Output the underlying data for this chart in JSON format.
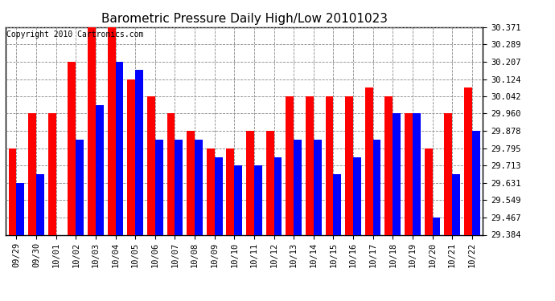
{
  "title": "Barometric Pressure Daily High/Low 20101023",
  "copyright": "Copyright 2010 Cartronics.com",
  "categories": [
    "09/29",
    "09/30",
    "10/01",
    "10/02",
    "10/03",
    "10/04",
    "10/05",
    "10/06",
    "10/07",
    "10/08",
    "10/09",
    "10/10",
    "10/11",
    "10/12",
    "10/13",
    "10/14",
    "10/15",
    "10/16",
    "10/17",
    "10/18",
    "10/19",
    "10/20",
    "10/21",
    "10/22"
  ],
  "highs": [
    29.795,
    29.96,
    29.96,
    30.207,
    30.371,
    30.371,
    30.124,
    30.042,
    29.96,
    29.878,
    29.795,
    29.795,
    29.878,
    29.878,
    30.042,
    30.042,
    30.042,
    30.042,
    30.083,
    30.042,
    29.96,
    29.795,
    29.96,
    30.083
  ],
  "lows": [
    29.631,
    29.672,
    29.384,
    29.836,
    30.0,
    30.207,
    30.166,
    29.836,
    29.836,
    29.836,
    29.754,
    29.713,
    29.713,
    29.754,
    29.836,
    29.836,
    29.672,
    29.754,
    29.836,
    29.96,
    29.96,
    29.467,
    29.672,
    29.878
  ],
  "yticks": [
    29.384,
    29.467,
    29.549,
    29.631,
    29.713,
    29.795,
    29.878,
    29.96,
    30.042,
    30.124,
    30.207,
    30.289,
    30.371
  ],
  "ymin": 29.384,
  "ymax": 30.371,
  "bar_width": 0.4,
  "high_color": "#ff0000",
  "low_color": "#0000ff",
  "bg_color": "#ffffff",
  "grid_color": "#888888",
  "title_fontsize": 11,
  "tick_fontsize": 7.5,
  "copyright_fontsize": 7
}
